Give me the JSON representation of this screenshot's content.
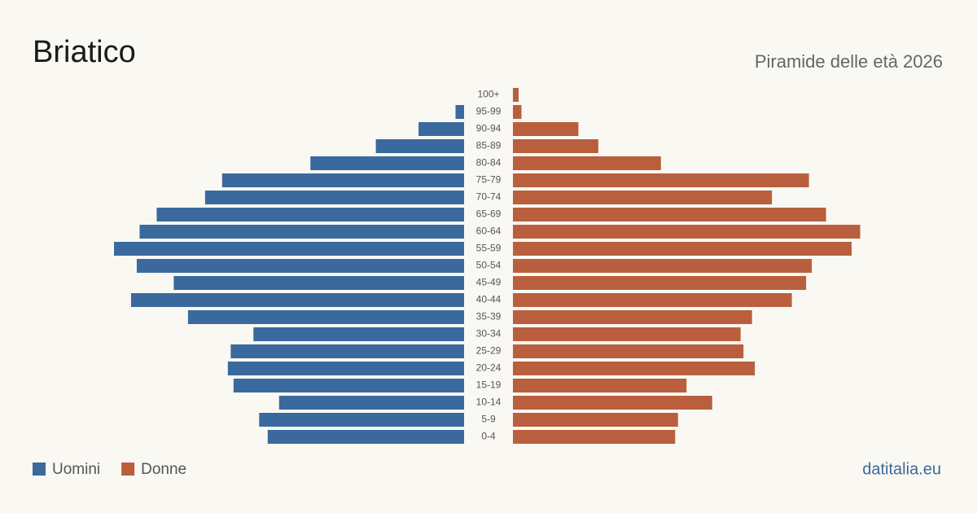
{
  "chart_data": {
    "type": "pyramid",
    "title": "Briatico",
    "subtitle": "Piramide delle età 2026",
    "categories": [
      "100+",
      "95-99",
      "90-94",
      "85-89",
      "80-84",
      "75-79",
      "70-74",
      "65-69",
      "60-64",
      "55-59",
      "50-54",
      "45-49",
      "40-44",
      "35-39",
      "30-34",
      "25-29",
      "20-24",
      "15-19",
      "10-14",
      "5-9",
      "0-4"
    ],
    "series": [
      {
        "name": "Uomini",
        "color": "#3a6a9d",
        "values": [
          0,
          3,
          16,
          31,
          54,
          85,
          91,
          108,
          114,
          123,
          115,
          102,
          117,
          97,
          74,
          82,
          83,
          81,
          65,
          72,
          69
        ]
      },
      {
        "name": "Donne",
        "color": "#b95f3d",
        "values": [
          2,
          3,
          23,
          30,
          52,
          104,
          91,
          110,
          122,
          119,
          105,
          103,
          98,
          84,
          80,
          81,
          85,
          61,
          70,
          58,
          57
        ]
      }
    ]
  },
  "source": "datitalia.eu"
}
